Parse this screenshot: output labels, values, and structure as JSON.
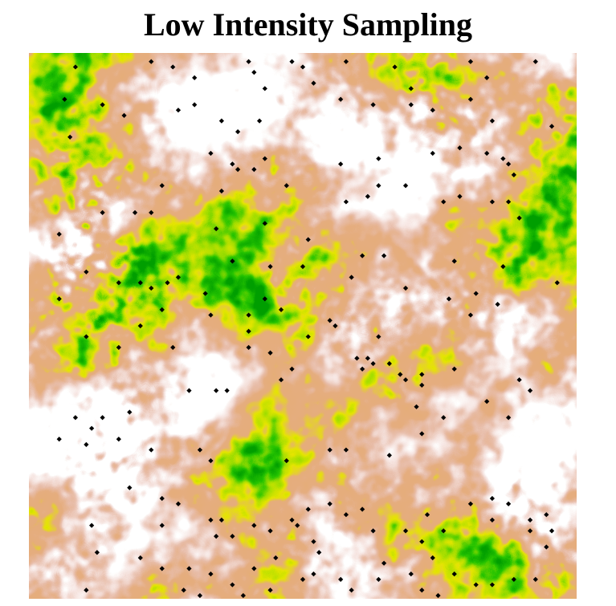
{
  "chart_data": {
    "type": "scatter",
    "title": "Low Intensity Sampling",
    "background": "raster intensity surface",
    "colormap": [
      "#ffffff",
      "#e8c0b0",
      "#e6ab7a",
      "#e6e600",
      "#a6df00",
      "#38c400",
      "#00a600"
    ],
    "point_color": "#000000",
    "x_range": [
      0,
      1
    ],
    "y_range": [
      0,
      1
    ],
    "axes_visible": false,
    "points": [
      [
        0.08,
        0.98
      ],
      [
        0.22,
        0.99
      ],
      [
        0.26,
        0.98
      ],
      [
        0.3,
        0.96
      ],
      [
        0.4,
        0.99
      ],
      [
        0.41,
        0.97
      ],
      [
        0.43,
        0.94
      ],
      [
        0.48,
        0.99
      ],
      [
        0.5,
        0.98
      ],
      [
        0.52,
        0.95
      ],
      [
        0.58,
        0.99
      ],
      [
        0.67,
        0.98
      ],
      [
        0.7,
        0.94
      ],
      [
        0.81,
        0.99
      ],
      [
        0.84,
        0.96
      ],
      [
        0.93,
        0.99
      ],
      [
        0.06,
        0.92
      ],
      [
        0.13,
        0.91
      ],
      [
        0.17,
        0.89
      ],
      [
        0.27,
        0.9
      ],
      [
        0.3,
        0.91
      ],
      [
        0.35,
        0.88
      ],
      [
        0.38,
        0.86
      ],
      [
        0.42,
        0.88
      ],
      [
        0.57,
        0.92
      ],
      [
        0.63,
        0.91
      ],
      [
        0.7,
        0.91
      ],
      [
        0.74,
        0.9
      ],
      [
        0.81,
        0.92
      ],
      [
        0.85,
        0.88
      ],
      [
        0.96,
        0.87
      ],
      [
        0.07,
        0.85
      ],
      [
        0.33,
        0.82
      ],
      [
        0.37,
        0.8
      ],
      [
        0.38,
        0.79
      ],
      [
        0.43,
        0.81
      ],
      [
        0.57,
        0.8
      ],
      [
        0.64,
        0.81
      ],
      [
        0.74,
        0.82
      ],
      [
        0.79,
        0.83
      ],
      [
        0.84,
        0.82
      ],
      [
        0.87,
        0.81
      ],
      [
        0.88,
        0.8
      ],
      [
        0.89,
        0.78
      ],
      [
        0.24,
        0.76
      ],
      [
        0.35,
        0.75
      ],
      [
        0.41,
        0.79
      ],
      [
        0.47,
        0.76
      ],
      [
        0.58,
        0.73
      ],
      [
        0.62,
        0.74
      ],
      [
        0.64,
        0.76
      ],
      [
        0.69,
        0.76
      ],
      [
        0.76,
        0.73
      ],
      [
        0.79,
        0.74
      ],
      [
        0.85,
        0.73
      ],
      [
        0.88,
        0.73
      ],
      [
        0.9,
        0.7
      ],
      [
        0.13,
        0.71
      ],
      [
        0.19,
        0.71
      ],
      [
        0.22,
        0.71
      ],
      [
        0.34,
        0.68
      ],
      [
        0.43,
        0.69
      ],
      [
        0.51,
        0.66
      ],
      [
        0.61,
        0.63
      ],
      [
        0.65,
        0.63
      ],
      [
        0.78,
        0.62
      ],
      [
        0.87,
        0.61
      ],
      [
        0.97,
        0.58
      ],
      [
        0.05,
        0.67
      ],
      [
        0.1,
        0.6
      ],
      [
        0.16,
        0.58
      ],
      [
        0.22,
        0.57
      ],
      [
        0.25,
        0.58
      ],
      [
        0.27,
        0.59
      ],
      [
        0.37,
        0.62
      ],
      [
        0.44,
        0.61
      ],
      [
        0.5,
        0.61
      ],
      [
        0.59,
        0.59
      ],
      [
        0.69,
        0.57
      ],
      [
        0.77,
        0.55
      ],
      [
        0.82,
        0.56
      ],
      [
        0.86,
        0.54
      ],
      [
        0.2,
        0.5
      ],
      [
        0.2,
        0.58
      ],
      [
        0.24,
        0.53
      ],
      [
        0.32,
        0.56
      ],
      [
        0.33,
        0.52
      ],
      [
        0.4,
        0.52
      ],
      [
        0.4,
        0.49
      ],
      [
        0.43,
        0.55
      ],
      [
        0.46,
        0.53
      ],
      [
        0.51,
        0.48
      ],
      [
        0.55,
        0.51
      ],
      [
        0.56,
        0.5
      ],
      [
        0.64,
        0.48
      ],
      [
        0.81,
        0.52
      ],
      [
        0.05,
        0.55
      ],
      [
        0.1,
        0.48
      ],
      [
        0.16,
        0.46
      ],
      [
        0.26,
        0.46
      ],
      [
        0.4,
        0.46
      ],
      [
        0.44,
        0.45
      ],
      [
        0.62,
        0.44
      ],
      [
        0.63,
        0.43
      ],
      [
        0.66,
        0.43
      ],
      [
        0.68,
        0.41
      ],
      [
        0.69,
        0.4
      ],
      [
        0.72,
        0.41
      ],
      [
        0.78,
        0.42
      ],
      [
        0.9,
        0.4
      ],
      [
        0.92,
        0.38
      ],
      [
        0.08,
        0.33
      ],
      [
        0.13,
        0.33
      ],
      [
        0.11,
        0.31
      ],
      [
        0.16,
        0.29
      ],
      [
        0.18,
        0.34
      ],
      [
        0.29,
        0.38
      ],
      [
        0.34,
        0.38
      ],
      [
        0.36,
        0.38
      ],
      [
        0.46,
        0.4
      ],
      [
        0.48,
        0.42
      ],
      [
        0.6,
        0.44
      ],
      [
        0.61,
        0.42
      ],
      [
        0.72,
        0.39
      ],
      [
        0.71,
        0.35
      ],
      [
        0.84,
        0.36
      ],
      [
        0.05,
        0.29
      ],
      [
        0.1,
        0.28
      ],
      [
        0.22,
        0.27
      ],
      [
        0.31,
        0.27
      ],
      [
        0.33,
        0.25
      ],
      [
        0.47,
        0.25
      ],
      [
        0.55,
        0.27
      ],
      [
        0.58,
        0.27
      ],
      [
        0.66,
        0.26
      ],
      [
        0.72,
        0.3
      ],
      [
        0.76,
        0.33
      ],
      [
        0.88,
        0.33
      ],
      [
        0.18,
        0.2
      ],
      [
        0.24,
        0.18
      ],
      [
        0.27,
        0.17
      ],
      [
        0.33,
        0.14
      ],
      [
        0.35,
        0.14
      ],
      [
        0.48,
        0.14
      ],
      [
        0.51,
        0.16
      ],
      [
        0.55,
        0.17
      ],
      [
        0.58,
        0.15
      ],
      [
        0.61,
        0.16
      ],
      [
        0.73,
        0.15
      ],
      [
        0.76,
        0.12
      ],
      [
        0.81,
        0.17
      ],
      [
        0.85,
        0.18
      ],
      [
        0.88,
        0.17
      ],
      [
        0.92,
        0.14
      ],
      [
        0.11,
        0.13
      ],
      [
        0.24,
        0.13
      ],
      [
        0.34,
        0.11
      ],
      [
        0.37,
        0.11
      ],
      [
        0.41,
        0.13
      ],
      [
        0.44,
        0.12
      ],
      [
        0.49,
        0.13
      ],
      [
        0.52,
        0.1
      ],
      [
        0.53,
        0.08
      ],
      [
        0.63,
        0.12
      ],
      [
        0.69,
        0.12
      ],
      [
        0.72,
        0.1
      ],
      [
        0.85,
        0.14
      ],
      [
        0.92,
        0.12
      ],
      [
        0.95,
        0.15
      ],
      [
        0.96,
        0.12
      ],
      [
        0.95,
        0.09
      ],
      [
        0.12,
        0.08
      ],
      [
        0.2,
        0.07
      ],
      [
        0.24,
        0.05
      ],
      [
        0.29,
        0.05
      ],
      [
        0.33,
        0.04
      ],
      [
        0.37,
        0.02
      ],
      [
        0.41,
        0.05
      ],
      [
        0.45,
        0.07
      ],
      [
        0.52,
        0.04
      ],
      [
        0.57,
        0.03
      ],
      [
        0.65,
        0.06
      ],
      [
        0.7,
        0.04
      ],
      [
        0.72,
        0.01
      ],
      [
        0.74,
        0.07
      ],
      [
        0.78,
        0.04
      ],
      [
        0.82,
        0.02
      ],
      [
        0.89,
        0.03
      ],
      [
        0.93,
        0.03
      ],
      [
        0.28,
        0.01
      ],
      [
        0.39,
        0.0
      ],
      [
        0.44,
        0.01
      ],
      [
        0.5,
        0.03
      ],
      [
        0.59,
        0.01
      ],
      [
        0.64,
        0.03
      ],
      [
        0.75,
        0.0
      ],
      [
        0.85,
        0.02
      ],
      [
        0.31,
        0.0
      ],
      [
        0.1,
        0.01
      ]
    ]
  }
}
